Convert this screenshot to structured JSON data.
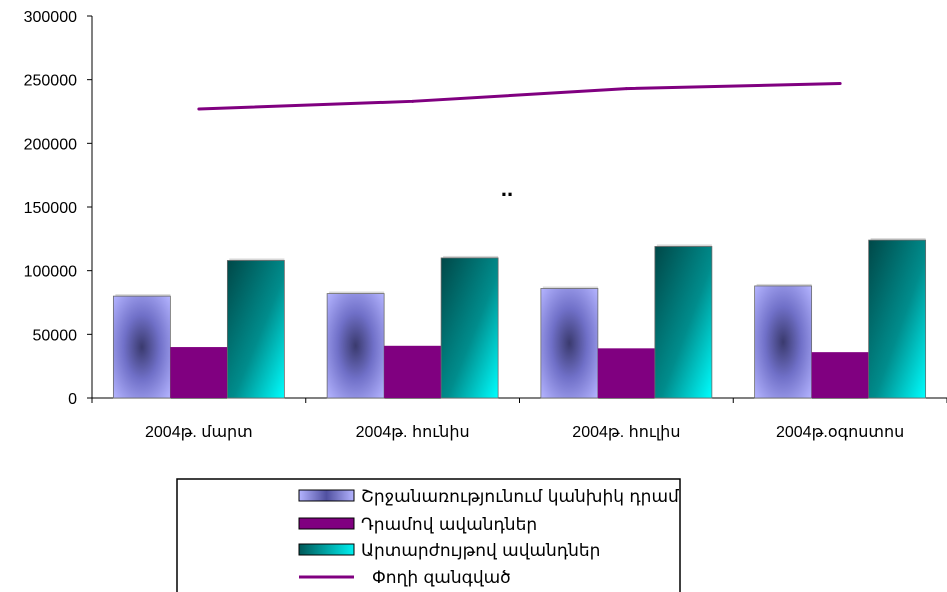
{
  "chart_data": {
    "type": "bar",
    "categories": [
      "2004թ. մարտ",
      "2004թ. հունիս",
      "2004թ. հուլիս",
      "2004թ.օգոստոս"
    ],
    "series": [
      {
        "name": "Շրջանառությունում կանխիկ դրամ",
        "kind": "bar",
        "values": [
          80000,
          82000,
          86000,
          88000
        ],
        "color": "#9999ff"
      },
      {
        "name": "Դրամով ավանդներ",
        "kind": "bar",
        "values": [
          40000,
          41000,
          39000,
          36000
        ],
        "color": "#800080"
      },
      {
        "name": "Արտարժույթով ավանդներ",
        "kind": "bar",
        "values": [
          108000,
          110000,
          119000,
          124000
        ],
        "color": "#008080"
      },
      {
        "name": "Փողի զանգված",
        "kind": "line",
        "values": [
          227000,
          233000,
          243000,
          247000
        ],
        "color": "#800080"
      }
    ],
    "yticks": [
      "0",
      "50000",
      "100000",
      "150000",
      "200000",
      "250000",
      "300000"
    ],
    "ylim": [
      0,
      300000
    ],
    "annotation": "..",
    "grid": false,
    "legend_position": "bottom"
  }
}
